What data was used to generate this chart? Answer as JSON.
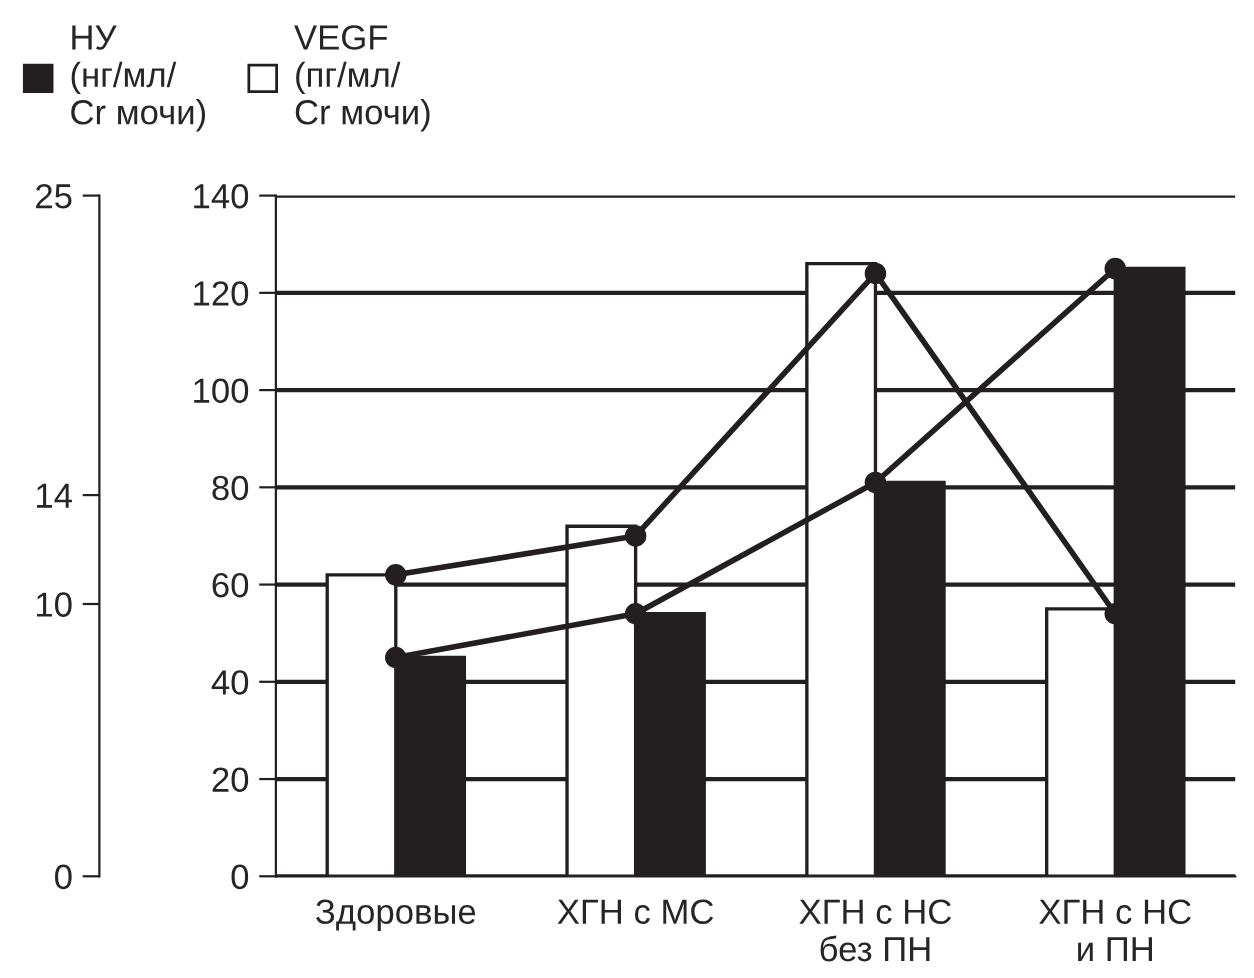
{
  "chart_data": {
    "type": "bar",
    "categories": [
      "Здоровые",
      "ХГН с МС",
      "ХГН с НС\nбез ПН",
      "ХГН с НС\nи ПН"
    ],
    "series": [
      {
        "name": "НУ\n(нг/мл/\nCr мочи)",
        "color": "#231f20",
        "values": [
          45,
          54,
          81,
          125
        ]
      },
      {
        "name": "VEGF\n(пг/мл/\nCr мочи)",
        "color": "#ffffff",
        "values": [
          62,
          72,
          126,
          55
        ]
      },
      {
        "type": "line",
        "color": "#231f20",
        "marker": "circle",
        "values": [
          62,
          70,
          124,
          54
        ]
      },
      {
        "type": "line",
        "color": "#231f20",
        "marker": "circle",
        "values": [
          45,
          54,
          81,
          125
        ]
      }
    ],
    "ylim": [
      0,
      140
    ],
    "yticks": [
      0,
      20,
      40,
      60,
      80,
      100,
      120,
      140
    ],
    "y2lim": [
      0,
      25
    ],
    "y2ticks": [
      0,
      10,
      14,
      25
    ],
    "grid": "y",
    "legend": "top left"
  }
}
